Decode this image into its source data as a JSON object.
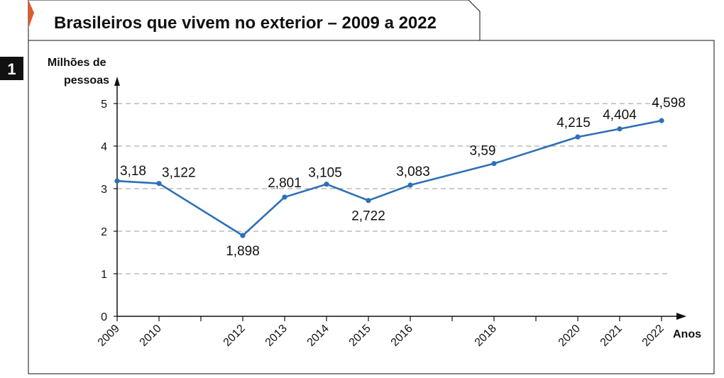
{
  "figure_number": "1",
  "colors": {
    "accent": "#e05a28",
    "line": "#2e6fb7",
    "grid": "#999999",
    "axis": "#111111",
    "badge": "#111111"
  },
  "chart_data": {
    "type": "line",
    "title": "Brasileiros que vivem no exterior – 2009 a 2022",
    "ylabel": "Milhões de pessoas",
    "ylabel_lines": [
      "Milhões de",
      "pessoas"
    ],
    "xlabel": "Anos",
    "ylim": [
      0,
      5
    ],
    "yticks": [
      "0",
      "1",
      "2",
      "3",
      "4",
      "5"
    ],
    "grid": true,
    "xticks": [
      "2009",
      "2010",
      "2012",
      "2013",
      "2014",
      "2015",
      "2016",
      "2018",
      "2020",
      "2021",
      "2022"
    ],
    "series": [
      {
        "x": [
          2009,
          2010,
          2012,
          2013,
          2014,
          2015,
          2016,
          2018,
          2020,
          2021,
          2022
        ],
        "values": [
          3.18,
          3.122,
          1.898,
          2.801,
          3.105,
          2.722,
          3.083,
          3.59,
          4.215,
          4.404,
          4.598
        ],
        "labels": [
          "3,18",
          "3,122",
          "1,898",
          "2,801",
          "3,105",
          "2,722",
          "3,083",
          "3,59",
          "4,215",
          "4,404",
          "4,598"
        ]
      }
    ]
  }
}
